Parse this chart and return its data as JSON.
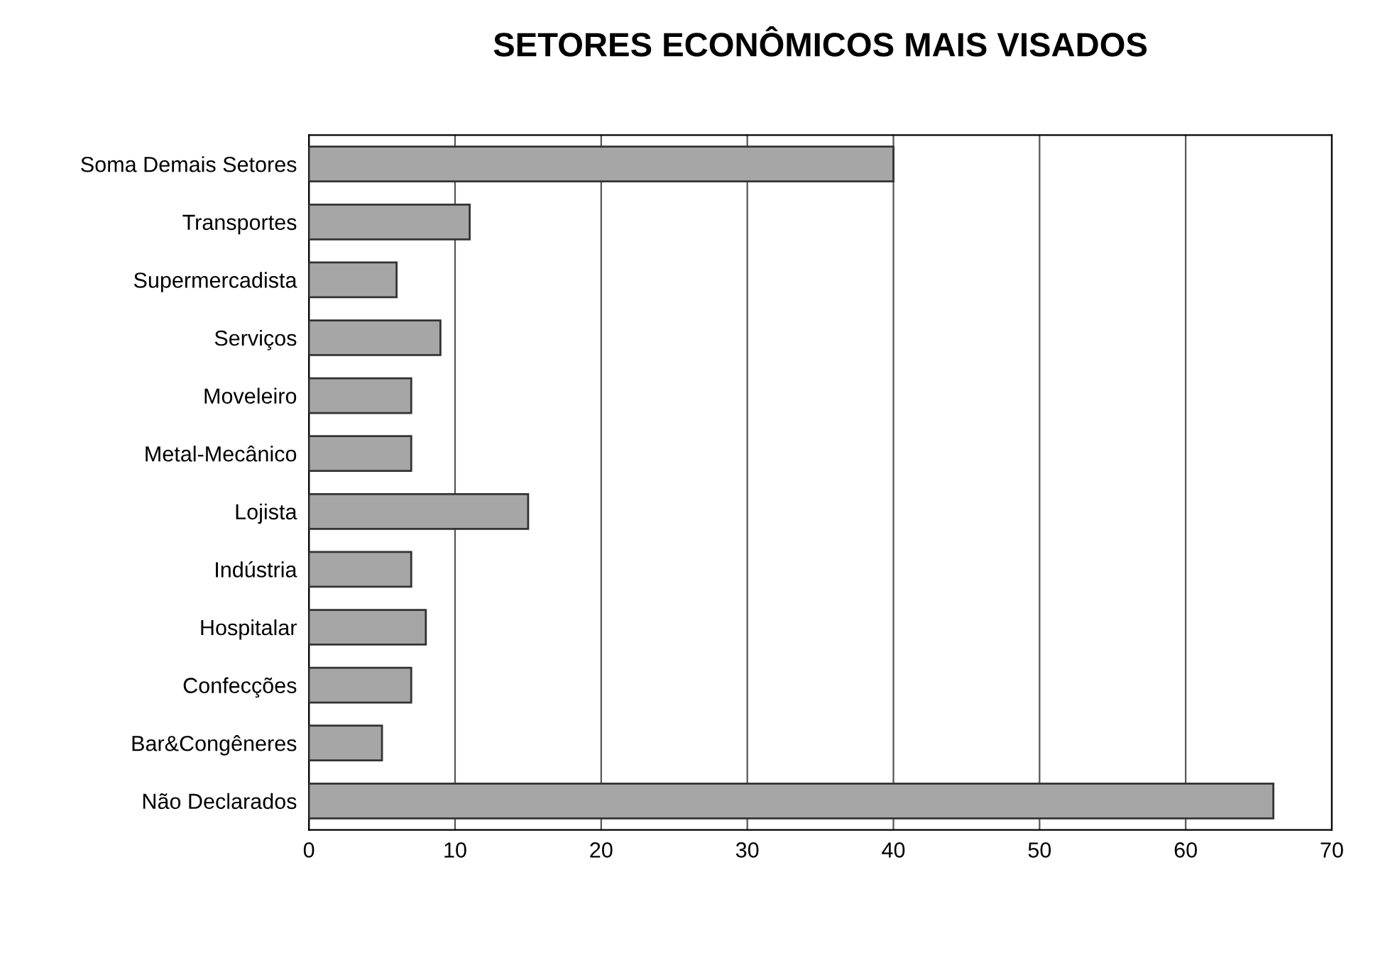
{
  "chart_data": {
    "type": "bar",
    "orientation": "horizontal",
    "title": "SETORES ECONÔMICOS MAIS VISADOS",
    "categories": [
      "Soma Demais Setores",
      "Transportes",
      "Supermercadista",
      "Serviços",
      "Moveleiro",
      "Metal-Mecânico",
      "Lojista",
      "Indústria",
      "Hospitalar",
      "Confecções",
      "Bar&Congêneres",
      "Não Declarados"
    ],
    "values": [
      40,
      11,
      6,
      9,
      7,
      7,
      15,
      7,
      8,
      7,
      5,
      66
    ],
    "color": "#a6a6a6",
    "xlim": [
      0,
      70
    ],
    "xticks": [
      0,
      10,
      20,
      30,
      40,
      50,
      60,
      70
    ],
    "grid": "x",
    "legend": false
  }
}
